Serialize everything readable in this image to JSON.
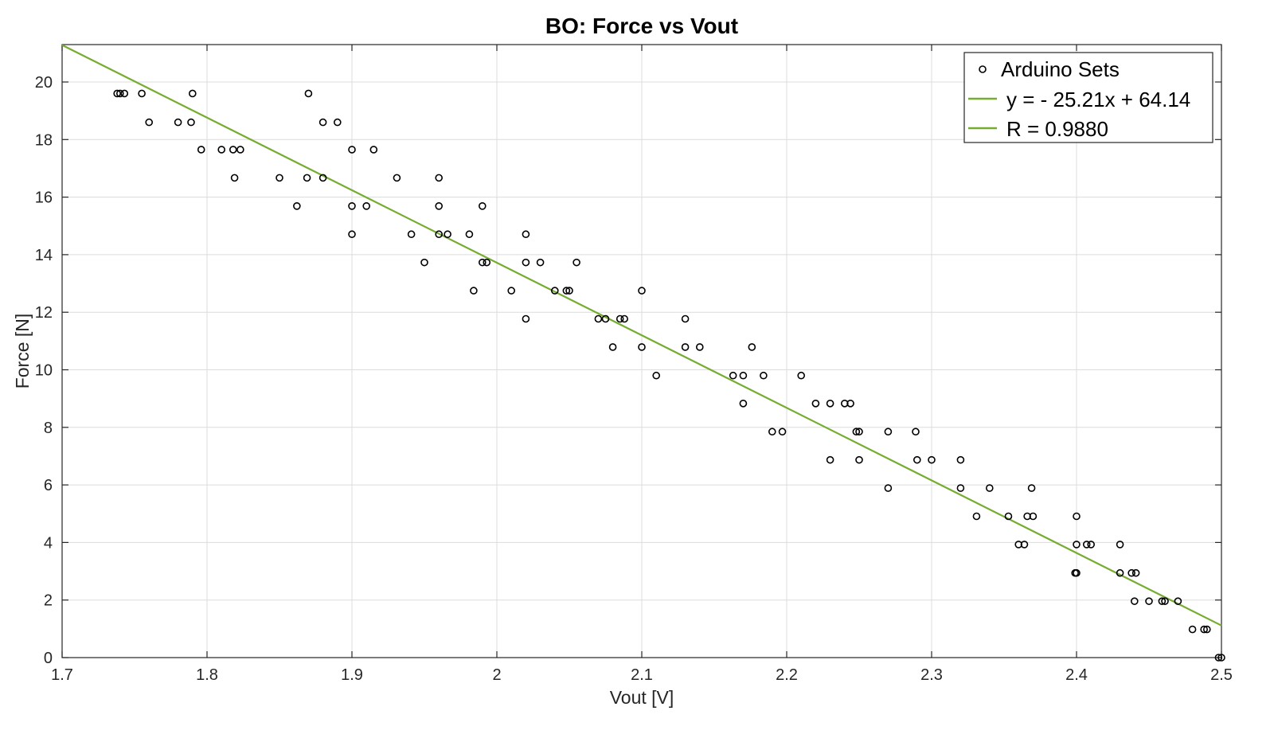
{
  "chart_data": {
    "type": "scatter",
    "title": "BO: Force vs Vout",
    "xlabel": "Vout [V]",
    "ylabel": "Force [N]",
    "xlim": [
      1.7,
      2.5
    ],
    "ylim": [
      0,
      21.3
    ],
    "grid": true,
    "legend_position": "top-right",
    "x_ticks": [
      "1.7",
      "1.8",
      "1.9",
      "2",
      "2.1",
      "2.2",
      "2.3",
      "2.4",
      "2.5"
    ],
    "y_ticks": [
      "0",
      "2",
      "4",
      "6",
      "8",
      "10",
      "12",
      "14",
      "16",
      "18",
      "20"
    ],
    "series": [
      {
        "name": "Arduino Sets",
        "type": "scatter",
        "color": "#000000",
        "points": [
          [
            1.738,
            19.6
          ],
          [
            1.74,
            19.6
          ],
          [
            1.743,
            19.6
          ],
          [
            1.755,
            19.6
          ],
          [
            1.76,
            18.6
          ],
          [
            1.78,
            18.6
          ],
          [
            1.789,
            18.6
          ],
          [
            1.79,
            19.6
          ],
          [
            1.796,
            17.65
          ],
          [
            1.81,
            17.65
          ],
          [
            1.818,
            17.65
          ],
          [
            1.819,
            16.67
          ],
          [
            1.823,
            17.65
          ],
          [
            1.85,
            16.67
          ],
          [
            1.862,
            15.69
          ],
          [
            1.869,
            16.67
          ],
          [
            1.87,
            19.6
          ],
          [
            1.88,
            18.6
          ],
          [
            1.88,
            16.67
          ],
          [
            1.89,
            18.6
          ],
          [
            1.9,
            17.65
          ],
          [
            1.9,
            15.69
          ],
          [
            1.9,
            14.71
          ],
          [
            1.91,
            15.69
          ],
          [
            1.915,
            17.65
          ],
          [
            1.931,
            16.67
          ],
          [
            1.941,
            14.71
          ],
          [
            1.95,
            13.73
          ],
          [
            1.96,
            16.67
          ],
          [
            1.96,
            15.69
          ],
          [
            1.96,
            14.71
          ],
          [
            1.966,
            14.71
          ],
          [
            1.981,
            14.71
          ],
          [
            1.984,
            12.75
          ],
          [
            1.99,
            15.69
          ],
          [
            1.99,
            13.73
          ],
          [
            1.993,
            13.73
          ],
          [
            2.01,
            12.75
          ],
          [
            2.02,
            14.71
          ],
          [
            2.02,
            13.73
          ],
          [
            2.02,
            11.77
          ],
          [
            2.03,
            13.73
          ],
          [
            2.04,
            12.75
          ],
          [
            2.048,
            12.75
          ],
          [
            2.05,
            12.75
          ],
          [
            2.055,
            13.73
          ],
          [
            2.07,
            11.77
          ],
          [
            2.075,
            11.77
          ],
          [
            2.08,
            10.79
          ],
          [
            2.085,
            11.77
          ],
          [
            2.088,
            11.77
          ],
          [
            2.1,
            12.75
          ],
          [
            2.1,
            10.79
          ],
          [
            2.11,
            9.8
          ],
          [
            2.13,
            11.77
          ],
          [
            2.13,
            10.79
          ],
          [
            2.14,
            10.79
          ],
          [
            2.163,
            9.8
          ],
          [
            2.17,
            9.8
          ],
          [
            2.17,
            8.83
          ],
          [
            2.176,
            10.79
          ],
          [
            2.184,
            9.8
          ],
          [
            2.19,
            7.85
          ],
          [
            2.197,
            7.85
          ],
          [
            2.21,
            9.8
          ],
          [
            2.22,
            8.83
          ],
          [
            2.23,
            8.83
          ],
          [
            2.23,
            6.87
          ],
          [
            2.24,
            8.83
          ],
          [
            2.244,
            8.83
          ],
          [
            2.248,
            7.85
          ],
          [
            2.25,
            7.85
          ],
          [
            2.25,
            6.87
          ],
          [
            2.27,
            7.85
          ],
          [
            2.27,
            5.89
          ],
          [
            2.289,
            7.85
          ],
          [
            2.29,
            6.87
          ],
          [
            2.3,
            6.87
          ],
          [
            2.32,
            6.87
          ],
          [
            2.32,
            5.89
          ],
          [
            2.331,
            4.91
          ],
          [
            2.34,
            5.89
          ],
          [
            2.353,
            4.91
          ],
          [
            2.36,
            3.93
          ],
          [
            2.364,
            3.93
          ],
          [
            2.366,
            4.91
          ],
          [
            2.369,
            5.89
          ],
          [
            2.37,
            4.91
          ],
          [
            2.399,
            2.94
          ],
          [
            2.4,
            2.94
          ],
          [
            2.4,
            3.93
          ],
          [
            2.4,
            4.91
          ],
          [
            2.407,
            3.93
          ],
          [
            2.41,
            3.93
          ],
          [
            2.43,
            3.93
          ],
          [
            2.43,
            2.94
          ],
          [
            2.438,
            2.94
          ],
          [
            2.441,
            2.94
          ],
          [
            2.44,
            1.96
          ],
          [
            2.45,
            1.96
          ],
          [
            2.459,
            1.96
          ],
          [
            2.461,
            1.96
          ],
          [
            2.47,
            1.96
          ],
          [
            2.48,
            0.98
          ],
          [
            2.488,
            0.98
          ],
          [
            2.49,
            0.98
          ],
          [
            2.498,
            0
          ],
          [
            2.5,
            0
          ]
        ]
      },
      {
        "name": "y = - 25.21x + 64.14",
        "type": "line",
        "color": "#77ac30",
        "slope": -25.21,
        "intercept": 64.14
      },
      {
        "name": "R = 0.9880",
        "type": "line",
        "color": "#77ac30"
      }
    ]
  }
}
